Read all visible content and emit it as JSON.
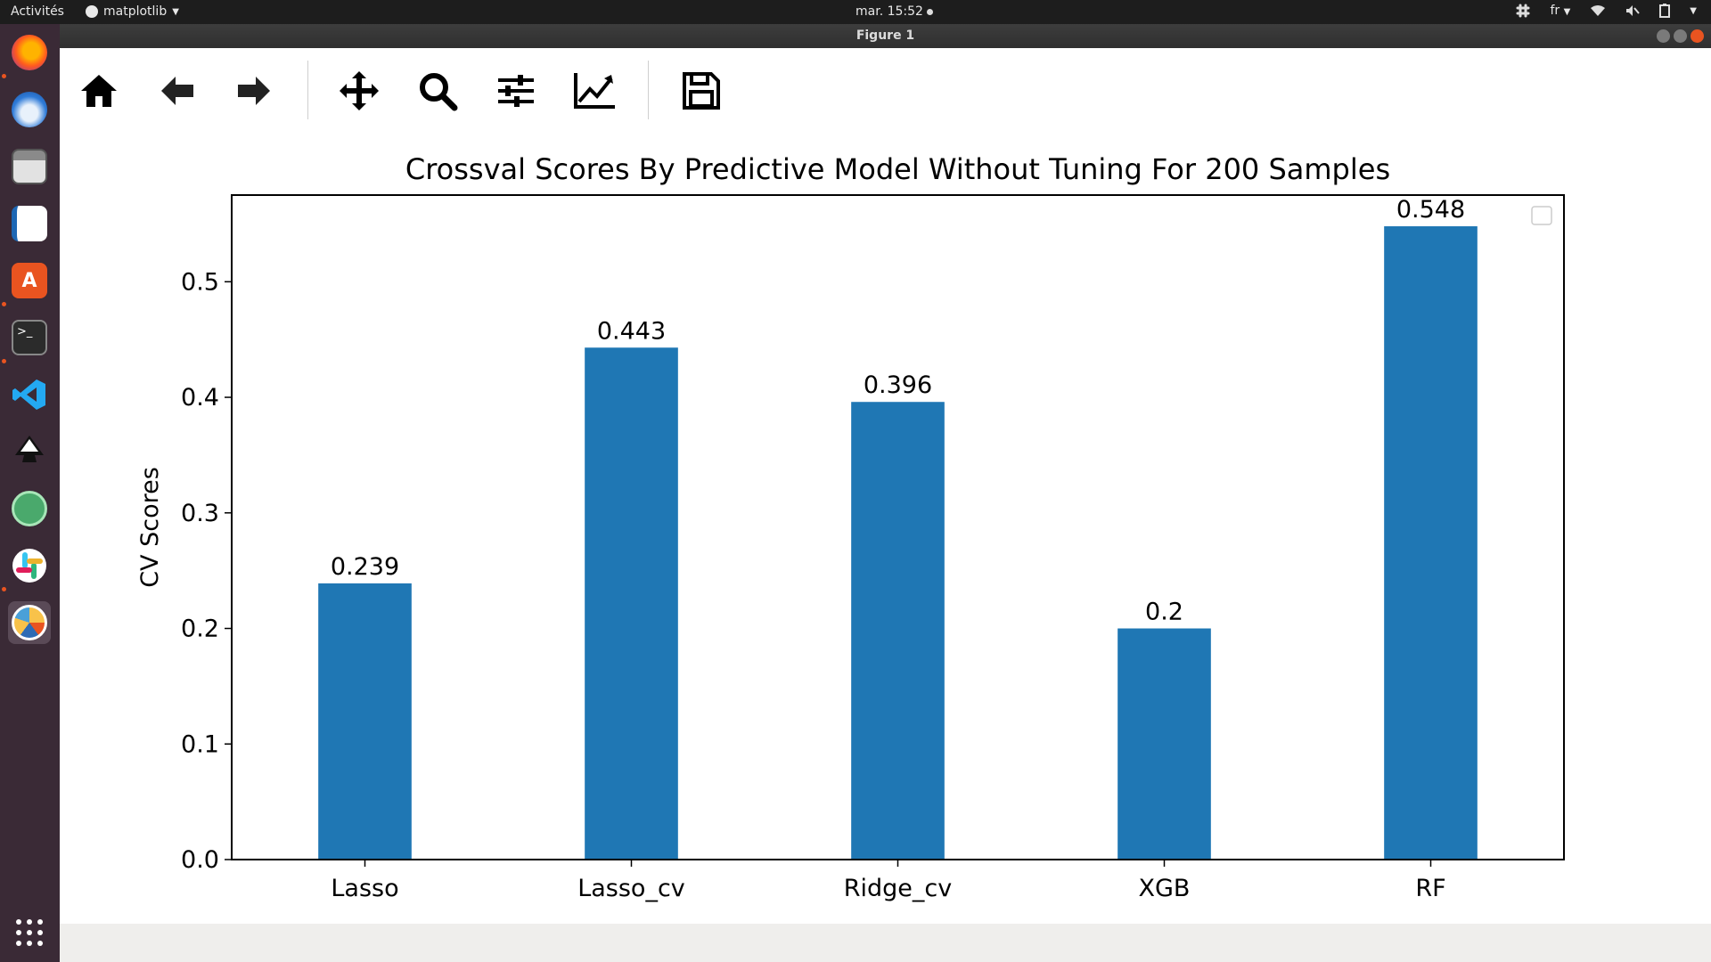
{
  "topbar": {
    "activities": "Activités",
    "app_name": "matplotlib",
    "clock": "mar. 15:52",
    "language": "fr"
  },
  "window": {
    "title": "Figure 1"
  },
  "toolbar": {
    "buttons": [
      "home-icon",
      "back-icon",
      "forward-icon",
      "pan-icon",
      "zoom-icon",
      "configure-subplots-icon",
      "edit-axis-icon",
      "save-icon"
    ]
  },
  "dock": {
    "apps": [
      "firefox",
      "thunderbird",
      "files",
      "libreoffice-writer",
      "ubuntu-software",
      "terminal",
      "vscode",
      "inkscape",
      "atom",
      "slack",
      "matplotlib-figure"
    ]
  },
  "colors": {
    "bar": "#1f77b4",
    "accent": "#e95420"
  },
  "chart_data": {
    "type": "bar",
    "title": "Crossval Scores By Predictive Model Without Tuning For 200 Samples",
    "xlabel": "",
    "ylabel": "CV Scores",
    "categories": [
      "Lasso",
      "Lasso_cv",
      "Ridge_cv",
      "XGB",
      "RF"
    ],
    "values": [
      0.239,
      0.443,
      0.396,
      0.2,
      0.548
    ],
    "value_labels": [
      "0.239",
      "0.443",
      "0.396",
      "0.2",
      "0.548"
    ],
    "yticks": [
      "0.0",
      "0.1",
      "0.2",
      "0.3",
      "0.4",
      "0.5"
    ],
    "ylim": [
      0,
      0.575
    ],
    "grid": false,
    "legend": "top-right (empty)"
  }
}
